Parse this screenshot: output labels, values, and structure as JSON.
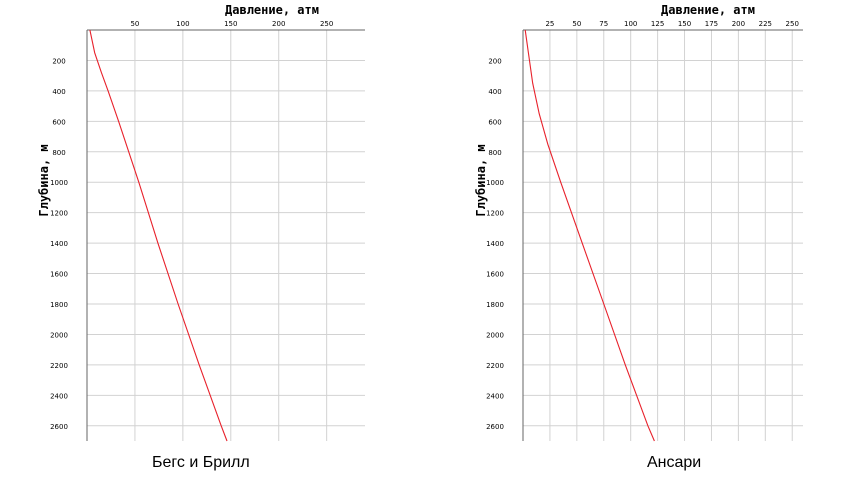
{
  "chart_data": [
    {
      "type": "line",
      "caption": "Бегс и Брилл",
      "xlabel": "Давление, атм",
      "ylabel": "Глубина, м",
      "xlim": [
        0,
        290
      ],
      "ylim": [
        2700,
        0
      ],
      "x_ticks": [
        50,
        100,
        150,
        200,
        250
      ],
      "y_ticks": [
        200,
        400,
        600,
        800,
        1000,
        1200,
        1400,
        1600,
        1800,
        2000,
        2200,
        2400,
        2600
      ],
      "grid": true,
      "series": [
        {
          "color": "#e8212b",
          "points": [
            {
              "x": 3,
              "y": 0
            },
            {
              "x": 8,
              "y": 150
            },
            {
              "x": 15,
              "y": 280
            },
            {
              "x": 22,
              "y": 400
            },
            {
              "x": 33,
              "y": 600
            },
            {
              "x": 54,
              "y": 1000
            },
            {
              "x": 74,
              "y": 1400
            },
            {
              "x": 95,
              "y": 1800
            },
            {
              "x": 117,
              "y": 2200
            },
            {
              "x": 140,
              "y": 2600
            },
            {
              "x": 146,
              "y": 2700
            }
          ]
        }
      ]
    },
    {
      "type": "line",
      "caption": "Ансари",
      "xlabel": "Давление, атм",
      "ylabel": "Глубина, м",
      "xlim": [
        0,
        260
      ],
      "ylim": [
        2700,
        0
      ],
      "x_ticks": [
        25,
        50,
        75,
        100,
        125,
        150,
        175,
        200,
        225,
        250
      ],
      "y_ticks": [
        200,
        400,
        600,
        800,
        1000,
        1200,
        1400,
        1600,
        1800,
        2000,
        2200,
        2400,
        2600
      ],
      "grid": true,
      "series": [
        {
          "color": "#e8212b",
          "points": [
            {
              "x": 2,
              "y": 0
            },
            {
              "x": 5,
              "y": 150
            },
            {
              "x": 9,
              "y": 350
            },
            {
              "x": 15,
              "y": 550
            },
            {
              "x": 23,
              "y": 750
            },
            {
              "x": 35,
              "y": 1000
            },
            {
              "x": 55,
              "y": 1400
            },
            {
              "x": 75,
              "y": 1800
            },
            {
              "x": 95,
              "y": 2200
            },
            {
              "x": 116,
              "y": 2600
            },
            {
              "x": 122,
              "y": 2700
            }
          ]
        }
      ]
    }
  ]
}
